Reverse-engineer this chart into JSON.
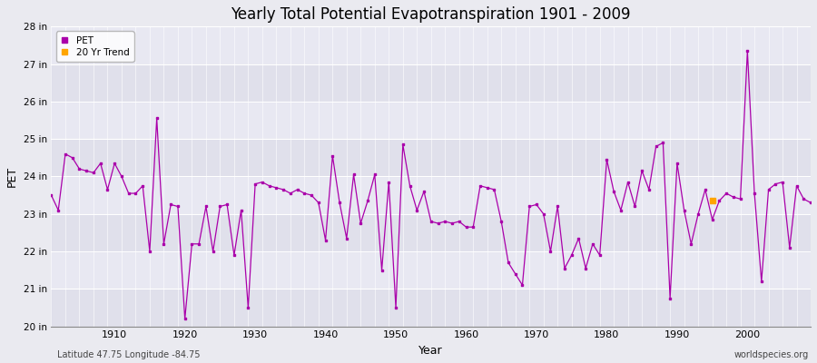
{
  "title": "Yearly Total Potential Evapotranspiration 1901 - 2009",
  "xlabel": "Year",
  "ylabel": "PET",
  "subtitle": "Latitude 47.75 Longitude -84.75",
  "watermark": "worldspecies.org",
  "ylim": [
    20,
    28
  ],
  "yticks": [
    20,
    21,
    22,
    23,
    24,
    25,
    26,
    27,
    28
  ],
  "ytick_labels": [
    "20 in",
    "21 in",
    "22 in",
    "23 in",
    "24 in",
    "25 in",
    "26 in",
    "27 in",
    "28 in"
  ],
  "xlim": [
    1901,
    2009
  ],
  "line_color": "#aa00aa",
  "trend_color": "#ffa500",
  "bg_color": "#eaeaf0",
  "grid_color": "#ffffff",
  "years": [
    1901,
    1902,
    1903,
    1904,
    1905,
    1906,
    1907,
    1908,
    1909,
    1910,
    1911,
    1912,
    1913,
    1914,
    1915,
    1916,
    1917,
    1918,
    1919,
    1920,
    1921,
    1922,
    1923,
    1924,
    1925,
    1926,
    1927,
    1928,
    1929,
    1930,
    1931,
    1932,
    1933,
    1934,
    1935,
    1936,
    1937,
    1938,
    1939,
    1940,
    1941,
    1942,
    1943,
    1944,
    1945,
    1946,
    1947,
    1948,
    1949,
    1950,
    1951,
    1952,
    1953,
    1954,
    1955,
    1956,
    1957,
    1958,
    1959,
    1960,
    1961,
    1962,
    1963,
    1964,
    1965,
    1966,
    1967,
    1968,
    1969,
    1970,
    1971,
    1972,
    1973,
    1974,
    1975,
    1976,
    1977,
    1978,
    1979,
    1980,
    1981,
    1982,
    1983,
    1984,
    1985,
    1986,
    1987,
    1988,
    1989,
    1990,
    1991,
    1992,
    1993,
    1994,
    1995,
    1996,
    1997,
    1998,
    1999,
    2000,
    2001,
    2002,
    2003,
    2004,
    2005,
    2006,
    2007,
    2008,
    2009
  ],
  "pet": [
    23.5,
    23.1,
    null,
    null,
    24.6,
    24.5,
    null,
    null,
    null,
    null,
    null,
    null,
    null,
    null,
    null,
    25.55,
    null,
    null,
    null,
    20.2,
    null,
    22.2,
    null,
    null,
    23.2,
    null,
    null,
    null,
    null,
    null,
    null,
    null,
    null,
    null,
    null,
    null,
    null,
    null,
    null,
    null,
    null,
    null,
    null,
    null,
    null,
    null,
    null,
    null,
    null,
    null,
    null,
    null,
    null,
    null,
    null,
    null,
    null,
    null,
    null,
    null,
    null,
    null,
    null,
    null,
    null,
    null,
    null,
    null,
    null,
    null,
    null,
    null,
    null,
    null,
    null,
    null,
    null,
    null,
    null,
    null,
    null,
    null,
    null,
    null,
    null,
    null,
    null,
    null,
    null,
    null,
    null,
    null,
    null,
    null,
    null,
    null,
    null,
    null,
    null,
    null,
    null,
    null,
    null,
    null,
    null,
    null,
    null,
    null,
    null
  ],
  "pet_connected": [
    23.5,
    23.1,
    24.6,
    24.5,
    24.2,
    24.15,
    24.1,
    24.35,
    23.65,
    24.35,
    24.0,
    23.55,
    23.55,
    23.75,
    22.0,
    25.55,
    22.2,
    23.25,
    23.2,
    20.2,
    22.2,
    22.2,
    23.2,
    22.0,
    23.2,
    23.25,
    21.9,
    23.1,
    20.5,
    23.8,
    23.85,
    23.75,
    23.7,
    23.65,
    23.55,
    23.65,
    23.55,
    23.5,
    23.3,
    22.3,
    24.55,
    23.3,
    22.35,
    24.05,
    22.75,
    23.35,
    24.05,
    21.5,
    23.85,
    20.5,
    24.85,
    23.75,
    23.1,
    23.6,
    22.8,
    22.75,
    22.8,
    22.75,
    22.8,
    22.65,
    22.65,
    23.75,
    23.7,
    23.65,
    22.8,
    21.7,
    21.4,
    21.1,
    23.2,
    23.25,
    23.0,
    22.0,
    23.2,
    21.55,
    21.9,
    22.35,
    21.55,
    22.2,
    21.9,
    24.45,
    23.6,
    23.1,
    23.85,
    23.2,
    24.15,
    23.65,
    24.8,
    24.9,
    20.75,
    24.35,
    23.1,
    22.2,
    23.0,
    23.65,
    22.85,
    23.35,
    23.55,
    23.45,
    23.4,
    27.35,
    23.55,
    21.2,
    23.65,
    23.8,
    23.85,
    22.1,
    23.75,
    23.4,
    23.3
  ],
  "trend_year": [
    1995
  ],
  "trend_value": [
    23.35
  ]
}
